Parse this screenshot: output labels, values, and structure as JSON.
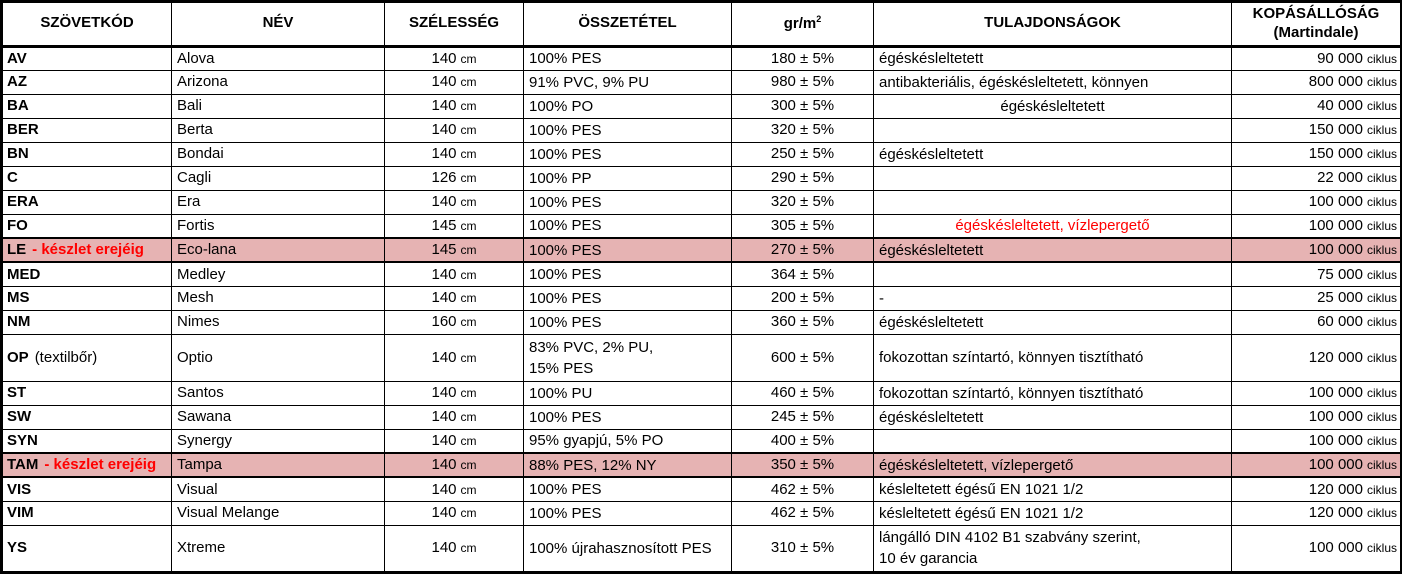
{
  "colors": {
    "highlight_row": "#e6b3b3",
    "accent_red": "#ff0000",
    "grid": "#000000",
    "background": "#ffffff"
  },
  "table": {
    "headers": {
      "code": "SZÖVETKÓD",
      "name": "NÉV",
      "width": "SZÉLESSÉG",
      "composition": "ÖSSZETÉTEL",
      "weight_base": "gr/m",
      "weight_sup": "2",
      "properties": "TULAJDONSÁGOK",
      "abrasion_line1": "KOPÁSÁLLÓSÁG",
      "abrasion_line2": "(Martindale)"
    },
    "units": {
      "width": "cm",
      "abrasion": "ciklus"
    },
    "rows": [
      {
        "code": "AV",
        "note": "",
        "note_red": false,
        "name": "Alova",
        "width_value": "140",
        "composition": "100% PES",
        "weight": "180 ± 5%",
        "properties": "égéskésleltetett",
        "properties_align": "left",
        "properties_red": false,
        "abrasion_value": "90 000",
        "highlight": false,
        "tall": false
      },
      {
        "code": "AZ",
        "note": "",
        "note_red": false,
        "name": "Arizona",
        "width_value": "140",
        "composition": "91% PVC, 9% PU",
        "weight": "980 ± 5%",
        "properties": "antibakteriális, égéskésleltetett, könnyen",
        "properties_align": "left",
        "properties_red": false,
        "abrasion_value": "800 000",
        "highlight": false,
        "tall": false
      },
      {
        "code": "BA",
        "note": "",
        "note_red": false,
        "name": "Bali",
        "width_value": "140",
        "composition": "100% PO",
        "weight": "300 ± 5%",
        "properties": "égéskésleltetett",
        "properties_align": "center",
        "properties_red": false,
        "abrasion_value": "40 000",
        "highlight": false,
        "tall": false
      },
      {
        "code": "BER",
        "note": "",
        "note_red": false,
        "name": "Berta",
        "width_value": "140",
        "composition": "100% PES",
        "weight": "320 ± 5%",
        "properties": "",
        "properties_align": "left",
        "properties_red": false,
        "abrasion_value": "150 000",
        "highlight": false,
        "tall": false
      },
      {
        "code": "BN",
        "note": "",
        "note_red": false,
        "name": "Bondai",
        "width_value": "140",
        "composition": "100% PES",
        "weight": "250 ± 5%",
        "properties": "égéskésleltetett",
        "properties_align": "left",
        "properties_red": false,
        "abrasion_value": "150 000",
        "highlight": false,
        "tall": false
      },
      {
        "code": "C",
        "note": "",
        "note_red": false,
        "name": "Cagli",
        "width_value": "126",
        "composition": "100% PP",
        "weight": "290 ± 5%",
        "properties": "",
        "properties_align": "left",
        "properties_red": false,
        "abrasion_value": "22 000",
        "highlight": false,
        "tall": false
      },
      {
        "code": "ERA",
        "note": "",
        "note_red": false,
        "name": "Era",
        "width_value": "140",
        "composition": "100% PES",
        "weight": "320 ± 5%",
        "properties": "",
        "properties_align": "left",
        "properties_red": false,
        "abrasion_value": "100 000",
        "highlight": false,
        "tall": false
      },
      {
        "code": "FO",
        "note": "",
        "note_red": false,
        "name": "Fortis",
        "width_value": "145",
        "composition": "100% PES",
        "weight": "305 ± 5%",
        "properties": "égéskésleltetett, vízlepergető",
        "properties_align": "center",
        "properties_red": true,
        "abrasion_value": "100 000",
        "highlight": false,
        "tall": false
      },
      {
        "code": "LE",
        "note": "- készlet erejéig",
        "note_red": true,
        "name": "Eco-lana",
        "width_value": "145",
        "composition": "100% PES",
        "weight": "270 ± 5%",
        "properties": "égéskésleltetett",
        "properties_align": "left",
        "properties_red": false,
        "abrasion_value": "100 000",
        "highlight": true,
        "tall": false
      },
      {
        "code": "MED",
        "note": "",
        "note_red": false,
        "name": "Medley",
        "width_value": "140",
        "composition": "100% PES",
        "weight": "364 ± 5%",
        "properties": "",
        "properties_align": "left",
        "properties_red": false,
        "abrasion_value": "75 000",
        "highlight": false,
        "tall": false
      },
      {
        "code": "MS",
        "note": "",
        "note_red": false,
        "name": "Mesh",
        "width_value": "140",
        "composition": "100% PES",
        "weight": "200 ± 5%",
        "properties": "-",
        "properties_align": "left",
        "properties_red": false,
        "abrasion_value": "25 000",
        "highlight": false,
        "tall": false
      },
      {
        "code": "NM",
        "note": "",
        "note_red": false,
        "name": "Nimes",
        "width_value": "160",
        "composition": "100% PES",
        "weight": "360 ± 5%",
        "properties": "égéskésleltetett",
        "properties_align": "left",
        "properties_red": false,
        "abrasion_value": "60 000",
        "highlight": false,
        "tall": false
      },
      {
        "code": "OP",
        "note": "(textilbőr)",
        "note_red": false,
        "name": "Optio",
        "width_value": "140",
        "composition": "83% PVC, 2% PU,\n15% PES",
        "weight": "600 ± 5%",
        "properties": "fokozottan színtartó, könnyen tisztítható",
        "properties_align": "left",
        "properties_red": false,
        "abrasion_value": "120 000",
        "highlight": false,
        "tall": true
      },
      {
        "code": "ST",
        "note": "",
        "note_red": false,
        "name": "Santos",
        "width_value": "140",
        "composition": "100% PU",
        "weight": "460 ± 5%",
        "properties": "fokozottan színtartó, könnyen tisztítható",
        "properties_align": "left",
        "properties_red": false,
        "abrasion_value": "100 000",
        "highlight": false,
        "tall": false
      },
      {
        "code": "SW",
        "note": "",
        "note_red": false,
        "name": "Sawana",
        "width_value": "140",
        "composition": "100% PES",
        "weight": "245 ± 5%",
        "properties": "égéskésleltetett",
        "properties_align": "left",
        "properties_red": false,
        "abrasion_value": "100 000",
        "highlight": false,
        "tall": false
      },
      {
        "code": "SYN",
        "note": "",
        "note_red": false,
        "name": "Synergy",
        "width_value": "140",
        "composition": "95% gyapjú, 5% PO",
        "weight": "400 ± 5%",
        "properties": "",
        "properties_align": "left",
        "properties_red": false,
        "abrasion_value": "100 000",
        "highlight": false,
        "tall": false
      },
      {
        "code": "TAM",
        "note": "- készlet erejéig",
        "note_red": true,
        "name": "Tampa",
        "width_value": "140",
        "composition": "88% PES, 12% NY",
        "weight": "350 ± 5%",
        "properties": "égéskésleltetett, vízlepergető",
        "properties_align": "left",
        "properties_red": false,
        "abrasion_value": "100 000",
        "highlight": true,
        "tall": false
      },
      {
        "code": "VIS",
        "note": "",
        "note_red": false,
        "name": "Visual",
        "width_value": "140",
        "composition": "100% PES",
        "weight": "462 ± 5%",
        "properties": "késleltetett égésű EN 1021 1/2",
        "properties_align": "left",
        "properties_red": false,
        "abrasion_value": "120 000",
        "highlight": false,
        "tall": false
      },
      {
        "code": "VIM",
        "note": "",
        "note_red": false,
        "name": "Visual Melange",
        "width_value": "140",
        "composition": "100% PES",
        "weight": "462 ± 5%",
        "properties": "késleltetett égésű EN 1021 1/2",
        "properties_align": "left",
        "properties_red": false,
        "abrasion_value": "120 000",
        "highlight": false,
        "tall": false
      },
      {
        "code": "YS",
        "note": "",
        "note_red": false,
        "name": "Xtreme",
        "width_value": "140",
        "composition": "100% újrahasznosított PES",
        "weight": "310 ± 5%",
        "properties": "lángálló DIN 4102 B1 szabvány szerint,\n10 év garancia",
        "properties_align": "left",
        "properties_red": false,
        "abrasion_value": "100 000",
        "highlight": false,
        "tall": true
      }
    ]
  }
}
